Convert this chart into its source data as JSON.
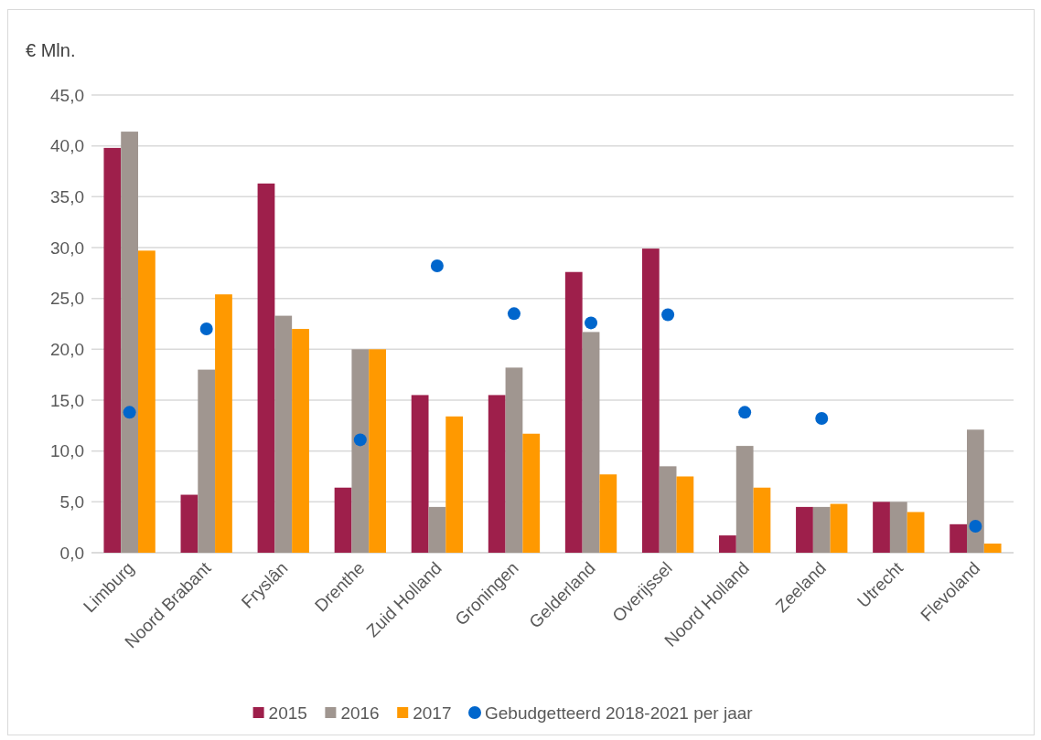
{
  "chart_data": {
    "type": "bar",
    "ylabel": "€ Mln.",
    "categories": [
      "Limburg",
      "Noord Brabant",
      "Fryslân",
      "Drenthe",
      "Zuid Holland",
      "Groningen",
      "Gelderland",
      "Overijssel",
      "Noord Holland",
      "Zeeland",
      "Utrecht",
      "Flevoland"
    ],
    "series": [
      {
        "name": "2015",
        "color": "#9e1f4b",
        "values": [
          39.8,
          5.7,
          36.3,
          6.4,
          15.5,
          15.5,
          27.6,
          29.9,
          1.7,
          4.5,
          5.0,
          2.8
        ]
      },
      {
        "name": "2016",
        "color": "#a09690",
        "values": [
          41.4,
          18.0,
          23.3,
          20.0,
          4.5,
          18.2,
          21.7,
          8.5,
          10.5,
          4.5,
          5.0,
          12.1
        ]
      },
      {
        "name": "2017",
        "color": "#ff9900",
        "values": [
          29.7,
          25.4,
          22.0,
          20.0,
          13.4,
          11.7,
          7.7,
          7.5,
          6.4,
          4.8,
          4.0,
          0.9
        ]
      },
      {
        "name": "Gebudgetteerd 2018-2021 per jaar",
        "type": "scatter",
        "marker": "circle",
        "color": "#0066cc",
        "values": [
          13.8,
          22.0,
          null,
          11.1,
          28.2,
          23.5,
          22.6,
          23.4,
          13.8,
          13.2,
          null,
          2.6
        ]
      }
    ],
    "ylim": [
      0,
      45
    ],
    "yticks": [
      {
        "value": 0,
        "label": "0,0"
      },
      {
        "value": 5,
        "label": "5,0"
      },
      {
        "value": 10,
        "label": "10,0"
      },
      {
        "value": 15,
        "label": "15,0"
      },
      {
        "value": 20,
        "label": "20,0"
      },
      {
        "value": 25,
        "label": "25,0"
      },
      {
        "value": 30,
        "label": "30,0"
      },
      {
        "value": 35,
        "label": "35,0"
      },
      {
        "value": 40,
        "label": "40,0"
      },
      {
        "value": 45,
        "label": "45,0"
      }
    ],
    "grid": "y",
    "legend": "bottom"
  }
}
